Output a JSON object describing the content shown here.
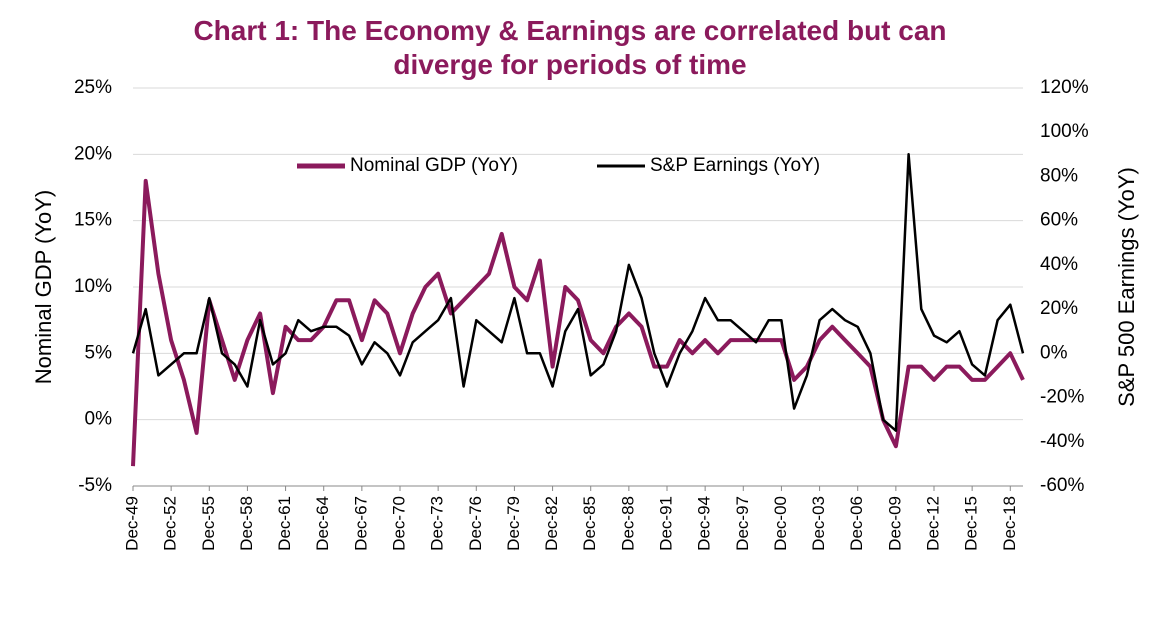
{
  "chart_data": {
    "type": "line",
    "title": "Chart 1: The Economy & Earnings are correlated but can diverge for periods of time",
    "y_label": "Nominal GDP (YoY)",
    "y2_label": "S&P 500 Earnings (YoY)",
    "categories": [
      "Dec-49",
      null,
      null,
      "Dec-52",
      null,
      null,
      "Dec-55",
      null,
      null,
      "Dec-58",
      null,
      null,
      "Dec-61",
      null,
      null,
      "Dec-64",
      null,
      null,
      "Dec-67",
      null,
      null,
      "Dec-70",
      null,
      null,
      "Dec-73",
      null,
      null,
      "Dec-76",
      null,
      null,
      "Dec-79",
      null,
      null,
      "Dec-82",
      null,
      null,
      "Dec-85",
      null,
      null,
      "Dec-88",
      null,
      null,
      "Dec-91",
      null,
      null,
      "Dec-94",
      null,
      null,
      "Dec-97",
      null,
      null,
      "Dec-00",
      null,
      null,
      "Dec-03",
      null,
      null,
      "Dec-06",
      null,
      null,
      "Dec-09",
      null,
      null,
      "Dec-12",
      null,
      null,
      "Dec-15",
      null,
      null,
      "Dec-18",
      null
    ],
    "series": [
      {
        "name": "Nominal GDP (YoY)",
        "color": "#8b1a5c",
        "axis": "y",
        "values": [
          -3.5,
          18,
          11,
          6,
          3,
          -1,
          9,
          6,
          3,
          6,
          8,
          2,
          7,
          6,
          6,
          7,
          9,
          9,
          6,
          9,
          8,
          5,
          8,
          10,
          11,
          8,
          9,
          10,
          11,
          14,
          10,
          9,
          12,
          4,
          10,
          9,
          6,
          5,
          7,
          8,
          7,
          4,
          4,
          6,
          5,
          6,
          5,
          6,
          6,
          6,
          6,
          6,
          3,
          4,
          6,
          7,
          6,
          5,
          4,
          0,
          -2,
          4,
          4,
          3,
          4,
          4,
          3,
          3,
          4,
          5,
          3
        ]
      },
      {
        "name": "S&P Earnings (YoY)",
        "color": "#000000",
        "axis": "y2",
        "values": [
          0,
          20,
          -10,
          -5,
          0,
          0,
          25,
          0,
          -5,
          -15,
          15,
          -5,
          0,
          15,
          10,
          12,
          12,
          8,
          -5,
          5,
          0,
          -10,
          5,
          10,
          15,
          25,
          -15,
          15,
          10,
          5,
          25,
          0,
          0,
          -15,
          10,
          20,
          -10,
          -5,
          10,
          40,
          25,
          0,
          -15,
          0,
          10,
          25,
          15,
          15,
          10,
          5,
          15,
          15,
          -25,
          -10,
          15,
          20,
          15,
          12,
          0,
          -30,
          -35,
          90,
          20,
          8,
          5,
          10,
          -5,
          -10,
          15,
          22,
          0
        ]
      }
    ],
    "ylim": [
      -5,
      25
    ],
    "yticks": [
      {
        "value": -5,
        "label": "-5%"
      },
      {
        "value": 0,
        "label": "0%"
      },
      {
        "value": 5,
        "label": "5%"
      },
      {
        "value": 10,
        "label": "10%"
      },
      {
        "value": 15,
        "label": "15%"
      },
      {
        "value": 20,
        "label": "20%"
      },
      {
        "value": 25,
        "label": "25%"
      }
    ],
    "y2lim": [
      -60,
      120
    ],
    "y2ticks": [
      {
        "value": -60,
        "label": "-60%"
      },
      {
        "value": -40,
        "label": "-40%"
      },
      {
        "value": -20,
        "label": "-20%"
      },
      {
        "value": 0,
        "label": "0%"
      },
      {
        "value": 20,
        "label": "20%"
      },
      {
        "value": 40,
        "label": "40%"
      },
      {
        "value": 60,
        "label": "60%"
      },
      {
        "value": 80,
        "label": "80%"
      },
      {
        "value": 100,
        "label": "100%"
      },
      {
        "value": 120,
        "label": "120%"
      }
    ],
    "grid": true
  }
}
